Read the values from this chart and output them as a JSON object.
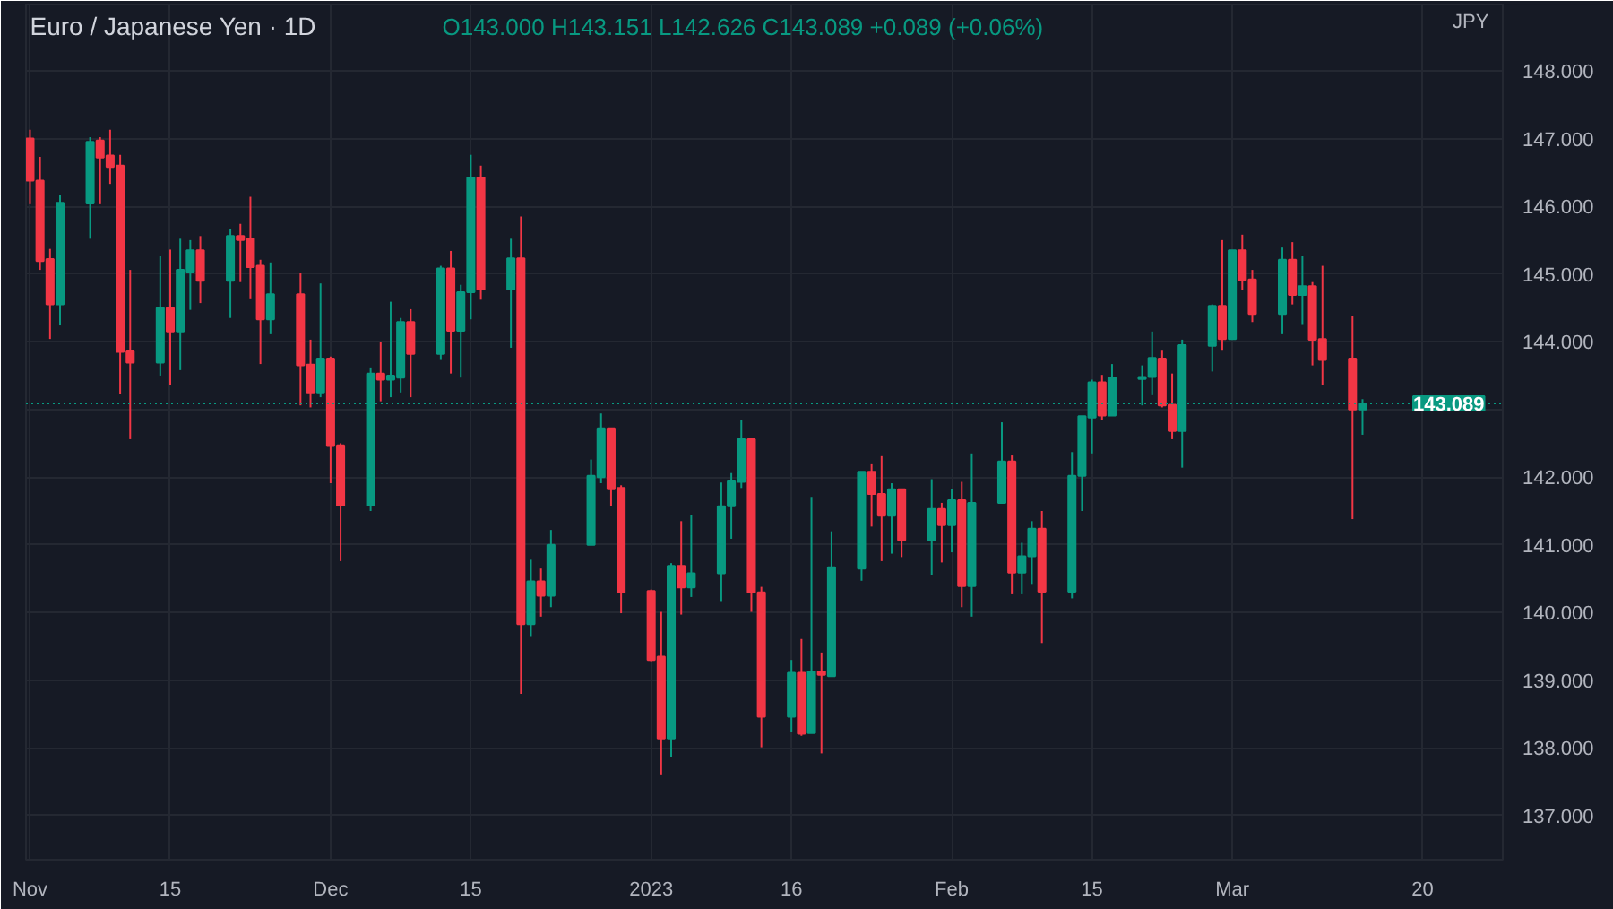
{
  "chart_data": {
    "type": "candlestick",
    "title": "Euro / Japanese Yen · 1D",
    "ylabel": "JPY",
    "annotations": [
      "O143.000 H143.151 L142.626 C143.089 +0.089 (+0.06%)"
    ],
    "x": [
      "2022-11-01",
      "2022-11-02",
      "2022-11-03",
      "2022-11-04",
      "2022-11-07",
      "2022-11-08",
      "2022-11-09",
      "2022-11-10",
      "2022-11-11",
      "2022-11-14",
      "2022-11-15",
      "2022-11-16",
      "2022-11-17",
      "2022-11-18",
      "2022-11-21",
      "2022-11-22",
      "2022-11-23",
      "2022-11-24",
      "2022-11-25",
      "2022-11-28",
      "2022-11-29",
      "2022-11-30",
      "2022-12-01",
      "2022-12-02",
      "2022-12-05",
      "2022-12-06",
      "2022-12-07",
      "2022-12-08",
      "2022-12-09",
      "2022-12-12",
      "2022-12-13",
      "2022-12-14",
      "2022-12-15",
      "2022-12-16",
      "2022-12-19",
      "2022-12-20",
      "2022-12-21",
      "2022-12-22",
      "2022-12-23",
      "2022-12-27",
      "2022-12-28",
      "2022-12-29",
      "2022-12-30",
      "2023-01-02",
      "2023-01-03",
      "2023-01-04",
      "2023-01-05",
      "2023-01-06",
      "2023-01-09",
      "2023-01-10",
      "2023-01-11",
      "2023-01-12",
      "2023-01-13",
      "2023-01-16",
      "2023-01-17",
      "2023-01-18",
      "2023-01-19",
      "2023-01-20",
      "2023-01-23",
      "2023-01-24",
      "2023-01-25",
      "2023-01-26",
      "2023-01-27",
      "2023-01-30",
      "2023-01-31",
      "2023-02-01",
      "2023-02-02",
      "2023-02-03",
      "2023-02-06",
      "2023-02-07",
      "2023-02-08",
      "2023-02-09",
      "2023-02-10",
      "2023-02-13",
      "2023-02-14",
      "2023-02-15",
      "2023-02-16",
      "2023-02-17",
      "2023-02-20",
      "2023-02-21",
      "2023-02-22",
      "2023-02-23",
      "2023-02-24",
      "2023-02-27",
      "2023-02-28",
      "2023-03-01",
      "2023-03-02",
      "2023-03-03",
      "2023-03-06",
      "2023-03-07",
      "2023-03-08",
      "2023-03-09",
      "2023-03-10",
      "2023-03-13",
      "2023-03-14"
    ],
    "ohlc": [
      [
        147.0,
        147.13,
        146.03,
        146.38
      ],
      [
        146.38,
        146.73,
        145.06,
        145.19
      ],
      [
        145.22,
        145.37,
        144.04,
        144.55
      ],
      [
        144.55,
        146.16,
        144.24,
        146.05
      ],
      [
        146.04,
        147.02,
        145.52,
        146.95
      ],
      [
        146.97,
        147.02,
        146.03,
        146.72
      ],
      [
        146.75,
        147.13,
        146.33,
        146.58
      ],
      [
        146.6,
        146.76,
        143.22,
        143.85
      ],
      [
        143.87,
        145.06,
        142.56,
        143.69
      ],
      [
        143.69,
        145.26,
        143.5,
        144.5
      ],
      [
        144.5,
        145.36,
        143.36,
        144.15
      ],
      [
        144.15,
        145.52,
        143.58,
        145.06
      ],
      [
        145.03,
        145.5,
        144.47,
        145.35
      ],
      [
        145.35,
        145.56,
        144.57,
        144.9
      ],
      [
        144.9,
        145.67,
        144.35,
        145.56
      ],
      [
        145.56,
        145.74,
        144.88,
        145.5
      ],
      [
        145.52,
        146.14,
        144.64,
        145.1
      ],
      [
        145.12,
        145.21,
        143.67,
        144.33
      ],
      [
        144.33,
        145.17,
        144.11,
        144.7
      ],
      [
        144.7,
        145.01,
        143.06,
        143.65
      ],
      [
        143.66,
        144.03,
        143.03,
        143.25
      ],
      [
        143.25,
        144.86,
        143.18,
        143.75
      ],
      [
        143.75,
        143.78,
        141.91,
        142.46
      ],
      [
        142.47,
        142.5,
        140.76,
        141.58
      ],
      [
        141.58,
        143.62,
        141.5,
        143.53
      ],
      [
        143.53,
        144.0,
        143.12,
        143.44
      ],
      [
        143.44,
        144.59,
        143.18,
        143.5
      ],
      [
        143.47,
        144.35,
        143.25,
        144.29
      ],
      [
        144.29,
        144.48,
        143.18,
        143.82
      ],
      [
        143.82,
        145.12,
        143.73,
        145.08
      ],
      [
        145.08,
        145.34,
        143.53,
        144.16
      ],
      [
        144.16,
        144.84,
        143.47,
        144.73
      ],
      [
        144.73,
        146.76,
        144.33,
        146.42
      ],
      [
        146.42,
        146.6,
        144.62,
        144.77
      ],
      [
        144.77,
        145.52,
        143.91,
        145.23
      ],
      [
        145.23,
        145.85,
        138.8,
        139.83
      ],
      [
        139.83,
        140.78,
        139.64,
        140.46
      ],
      [
        140.46,
        140.65,
        139.94,
        140.25
      ],
      [
        140.25,
        141.22,
        140.08,
        141.0
      ],
      [
        141.0,
        142.26,
        141.0,
        142.02
      ],
      [
        142.0,
        142.94,
        141.91,
        142.72
      ],
      [
        142.72,
        142.72,
        141.57,
        141.82
      ],
      [
        141.84,
        141.88,
        139.99,
        140.3
      ],
      [
        140.32,
        140.34,
        139.28,
        139.3
      ],
      [
        139.35,
        140.01,
        137.61,
        138.14
      ],
      [
        138.14,
        140.73,
        137.87,
        140.69
      ],
      [
        140.69,
        141.35,
        139.97,
        140.37
      ],
      [
        140.37,
        141.44,
        140.23,
        140.58
      ],
      [
        140.58,
        141.92,
        140.17,
        141.57
      ],
      [
        141.57,
        142.06,
        141.09,
        141.94
      ],
      [
        141.93,
        142.85,
        141.84,
        142.56
      ],
      [
        142.56,
        142.56,
        140.01,
        140.3
      ],
      [
        140.3,
        140.38,
        138.01,
        138.46
      ],
      [
        138.46,
        139.3,
        138.23,
        139.11
      ],
      [
        139.11,
        139.61,
        138.18,
        138.21
      ],
      [
        138.22,
        141.71,
        138.22,
        139.13
      ],
      [
        139.13,
        139.41,
        137.92,
        139.08
      ],
      [
        139.06,
        141.2,
        139.06,
        140.67
      ],
      [
        140.65,
        142.08,
        140.47,
        142.08
      ],
      [
        142.08,
        142.19,
        141.27,
        141.75
      ],
      [
        141.75,
        142.31,
        140.76,
        141.43
      ],
      [
        141.43,
        141.91,
        140.87,
        141.82
      ],
      [
        141.82,
        141.82,
        140.82,
        141.07
      ],
      [
        141.07,
        141.97,
        140.56,
        141.53
      ],
      [
        141.53,
        141.62,
        140.74,
        141.29
      ],
      [
        141.29,
        141.82,
        140.89,
        141.66
      ],
      [
        141.66,
        141.93,
        140.08,
        140.39
      ],
      [
        140.39,
        142.35,
        139.94,
        141.62
      ],
      [
        141.62,
        142.81,
        141.62,
        142.23
      ],
      [
        142.23,
        142.32,
        140.27,
        140.59
      ],
      [
        140.59,
        141.03,
        140.27,
        140.83
      ],
      [
        140.83,
        141.35,
        140.41,
        141.24
      ],
      [
        141.24,
        141.5,
        139.55,
        140.31
      ],
      [
        140.31,
        142.37,
        140.21,
        142.02
      ],
      [
        142.02,
        142.9,
        141.5,
        142.9
      ],
      [
        142.88,
        143.44,
        142.35,
        143.4
      ],
      [
        143.4,
        143.51,
        142.85,
        142.91
      ],
      [
        142.91,
        143.67,
        142.91,
        143.47
      ],
      [
        143.45,
        143.65,
        143.06,
        143.48
      ],
      [
        143.48,
        144.15,
        143.21,
        143.76
      ],
      [
        143.75,
        143.88,
        143.03,
        143.06
      ],
      [
        143.07,
        143.53,
        142.56,
        142.68
      ],
      [
        142.68,
        144.03,
        142.14,
        143.95
      ],
      [
        143.94,
        144.55,
        143.56,
        144.53
      ],
      [
        144.53,
        145.5,
        143.88,
        144.04
      ],
      [
        144.04,
        145.35,
        144.03,
        145.35
      ],
      [
        145.35,
        145.58,
        144.77,
        144.91
      ],
      [
        144.92,
        145.06,
        144.29,
        144.41
      ],
      [
        144.41,
        145.39,
        144.11,
        145.21
      ],
      [
        145.21,
        145.47,
        144.55,
        144.69
      ],
      [
        144.69,
        145.26,
        144.26,
        144.82
      ],
      [
        144.82,
        144.88,
        143.65,
        144.03
      ],
      [
        144.04,
        145.12,
        143.36,
        143.73
      ],
      [
        143.75,
        144.38,
        141.38,
        143.0
      ],
      [
        143.0,
        143.151,
        142.626,
        143.089
      ]
    ],
    "colors": [
      "#f23645",
      "#f23645",
      "#f23645",
      "#089981",
      "#089981",
      "#f23645",
      "#f23645",
      "#f23645",
      "#f23645",
      "#089981",
      "#f23645",
      "#089981",
      "#089981",
      "#f23645",
      "#089981",
      "#f23645",
      "#f23645",
      "#f23645",
      "#089981",
      "#f23645",
      "#f23645",
      "#089981",
      "#f23645",
      "#f23645",
      "#089981",
      "#f23645",
      "#089981",
      "#089981",
      "#f23645",
      "#089981",
      "#f23645",
      "#089981",
      "#089981",
      "#f23645",
      "#089981",
      "#f23645",
      "#089981",
      "#f23645",
      "#089981",
      "#089981",
      "#089981",
      "#f23645",
      "#f23645",
      "#f23645",
      "#f23645",
      "#089981",
      "#f23645",
      "#089981",
      "#089981",
      "#089981",
      "#089981",
      "#f23645",
      "#f23645",
      "#089981",
      "#f23645",
      "#089981",
      "#f23645",
      "#089981",
      "#089981",
      "#f23645",
      "#f23645",
      "#089981",
      "#f23645",
      "#089981",
      "#f23645",
      "#089981",
      "#f23645",
      "#089981",
      "#089981",
      "#f23645",
      "#089981",
      "#089981",
      "#f23645",
      "#089981",
      "#089981",
      "#089981",
      "#f23645",
      "#089981",
      "#089981",
      "#089981",
      "#f23645",
      "#f23645",
      "#089981",
      "#089981",
      "#f23645",
      "#089981",
      "#f23645",
      "#f23645",
      "#089981",
      "#f23645",
      "#089981",
      "#f23645",
      "#f23645",
      "#f23645",
      "#089981"
    ],
    "xlim": [
      "2022-11-01",
      "2023-03-28"
    ],
    "xticks": [
      {
        "value": "2022-11-01",
        "label": "Nov"
      },
      {
        "value": "2022-11-15",
        "label": "15"
      },
      {
        "value": "2022-12-01",
        "label": "Dec"
      },
      {
        "value": "2022-12-15",
        "label": "15"
      },
      {
        "value": "2023-01-02",
        "label": "2023"
      },
      {
        "value": "2023-01-16",
        "label": "16"
      },
      {
        "value": "2023-02-01",
        "label": "Feb"
      },
      {
        "value": "2023-02-15",
        "label": "15"
      },
      {
        "value": "2023-03-01",
        "label": "Mar"
      },
      {
        "value": "2023-03-20",
        "label": "20"
      }
    ],
    "ylim": [
      136.35,
      148.98
    ],
    "yticks": [
      {
        "value": 137,
        "label": "137.000"
      },
      {
        "value": 138,
        "label": "138.000"
      },
      {
        "value": 139,
        "label": "139.000"
      },
      {
        "value": 140,
        "label": "140.000"
      },
      {
        "value": 141,
        "label": "141.000"
      },
      {
        "value": 142,
        "label": "142.000"
      },
      {
        "value": 143,
        "label": null
      },
      {
        "value": 144,
        "label": "144.000"
      },
      {
        "value": 145,
        "label": "145.000"
      },
      {
        "value": 146,
        "label": "146.000"
      },
      {
        "value": 147,
        "label": "147.000"
      },
      {
        "value": 148,
        "label": "148.000"
      }
    ],
    "ref_lines": [
      {
        "axis": "y",
        "value": 143.089,
        "label": "143.089",
        "color": "#089981",
        "line_style": "dotted"
      }
    ],
    "grid": true
  }
}
